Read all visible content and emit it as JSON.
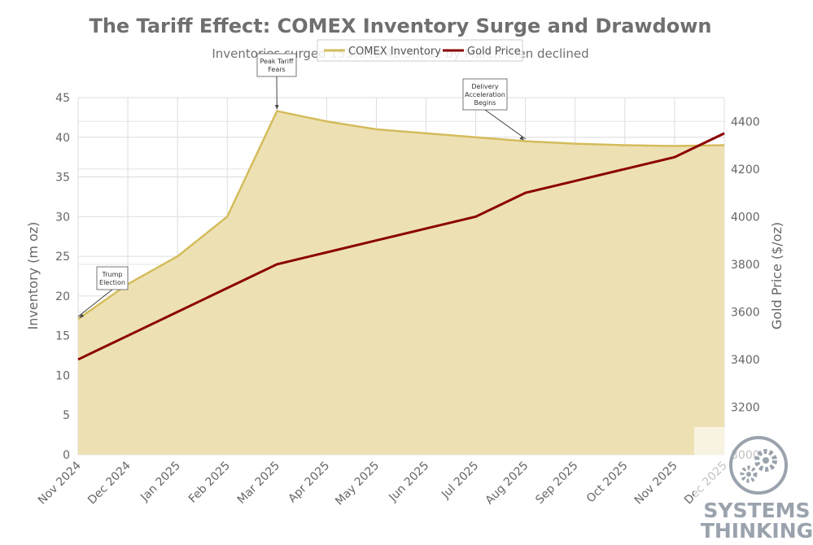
{
  "chart_data": {
    "type": "area",
    "title": "The Tariff Effect: COMEX Inventory Surge and Drawdown",
    "subtitle": "Inventories surged 153% to 43.3m oz by March then declined",
    "categories": [
      "Nov 2024",
      "Dec 2024",
      "Jan 2025",
      "Feb 2025",
      "Mar 2025",
      "Apr 2025",
      "May 2025",
      "Jun 2025",
      "Jul 2025",
      "Aug 2025",
      "Sep 2025",
      "Oct 2025",
      "Nov 2025",
      "Dec 2025"
    ],
    "series": [
      {
        "name": "COMEX Inventory",
        "axis": "left",
        "style": "area",
        "color": "#d4bc5c",
        "fill": "#ecdfb0",
        "values": [
          17.1,
          21.5,
          25.0,
          30.0,
          43.3,
          42.0,
          41.0,
          40.5,
          40.0,
          39.5,
          39.2,
          39.0,
          38.9,
          39.0
        ]
      },
      {
        "name": "Gold Price",
        "axis": "right",
        "style": "line",
        "color": "#8b0000",
        "values": [
          3400,
          3500,
          3600,
          3700,
          3800,
          3850,
          3900,
          3950,
          4000,
          4100,
          4150,
          4200,
          4250,
          4350
        ]
      }
    ],
    "ylabel": "Inventory (m oz)",
    "ylim": [
      0,
      45
    ],
    "yticks": [
      0,
      5,
      10,
      15,
      20,
      25,
      30,
      35,
      40,
      45
    ],
    "y2label": "Gold Price ($/oz)",
    "y2lim": [
      3000,
      4500
    ],
    "y2ticks": [
      3000,
      3200,
      3400,
      3600,
      3800,
      4000,
      4200,
      4400
    ],
    "grid": true,
    "legend_position": "top-center",
    "annotations": [
      {
        "lines": [
          "Trump",
          "Election"
        ],
        "index": 0
      },
      {
        "lines": [
          "Peak Tariff",
          "Fears"
        ],
        "index": 4
      },
      {
        "lines": [
          "Delivery",
          "Acceleration",
          "Begins"
        ],
        "index": 9
      }
    ]
  },
  "watermark": {
    "line1": "SYSTEMS",
    "line2": "THINKING",
    "icon": "gears-icon"
  }
}
